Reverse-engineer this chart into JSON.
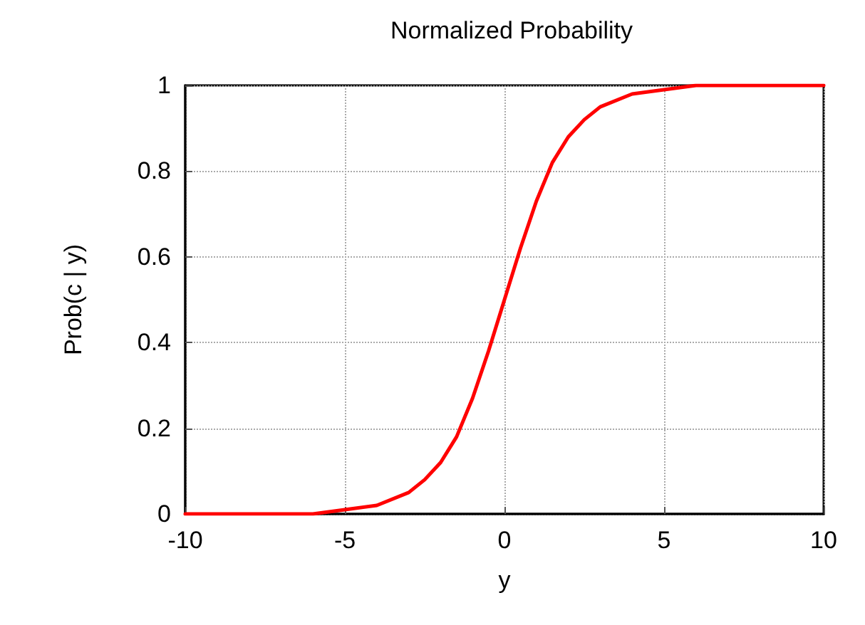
{
  "chart_data": {
    "type": "line",
    "title": "Normalized Probability",
    "xlabel": "y",
    "ylabel": "Prob(c | y)",
    "x": [
      -10,
      -8,
      -6,
      -5,
      -4,
      -3,
      -2.5,
      -2,
      -1.5,
      -1,
      -0.5,
      0,
      0.5,
      1,
      1.5,
      2,
      2.5,
      3,
      4,
      5,
      6,
      8,
      10
    ],
    "series": [
      {
        "color": "#ff0000",
        "values": [
          0,
          0,
          0,
          0.01,
          0.02,
          0.05,
          0.08,
          0.12,
          0.18,
          0.27,
          0.38,
          0.5,
          0.62,
          0.73,
          0.82,
          0.88,
          0.92,
          0.95,
          0.98,
          0.99,
          1,
          1,
          1
        ]
      }
    ],
    "xlim": [
      -10,
      10
    ],
    "xticks": [
      -10,
      -5,
      0,
      5,
      10
    ],
    "ylim": [
      0,
      1
    ],
    "yticks": [
      0,
      0.2,
      0.4,
      0.6,
      0.8,
      1
    ],
    "grid": true,
    "marker": "none",
    "line_style": "solid"
  }
}
